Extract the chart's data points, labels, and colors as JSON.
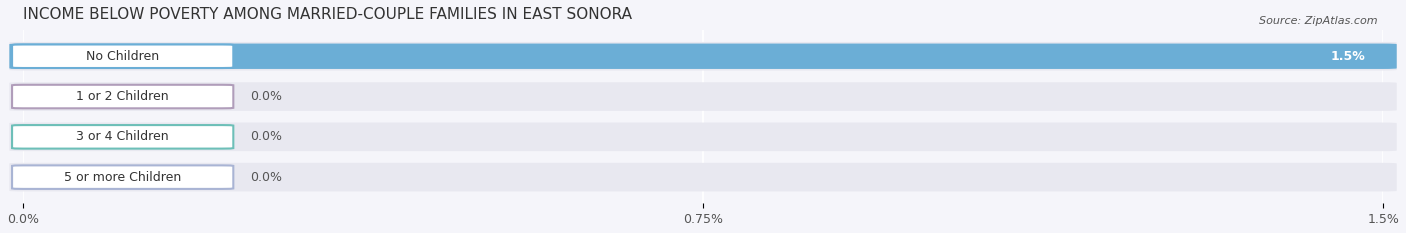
{
  "title": "INCOME BELOW POVERTY AMONG MARRIED-COUPLE FAMILIES IN EAST SONORA",
  "source": "Source: ZipAtlas.com",
  "categories": [
    "No Children",
    "1 or 2 Children",
    "3 or 4 Children",
    "5 or more Children"
  ],
  "values": [
    1.5,
    0.0,
    0.0,
    0.0
  ],
  "bar_colors": [
    "#6baed6",
    "#b09dba",
    "#6dbfb8",
    "#a9b4d4"
  ],
  "bar_bg_color": "#e8e8f0",
  "xlim": [
    0,
    1.5
  ],
  "xticks": [
    0.0,
    0.75,
    1.5
  ],
  "xtick_labels": [
    "0.0%",
    "0.75%",
    "1.5%"
  ],
  "value_fontsize": 9,
  "label_fontsize": 9,
  "title_fontsize": 11,
  "background_color": "#f5f5fa"
}
